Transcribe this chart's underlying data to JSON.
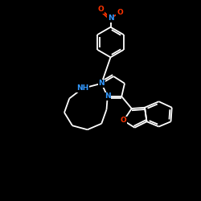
{
  "background_color": "#000000",
  "bond_color": "#ffffff",
  "N_color": "#3399ff",
  "O_color": "#ff3300",
  "figsize": [
    2.5,
    2.5
  ],
  "dpi": 100,
  "xlim": [
    0,
    10
  ],
  "ylim": [
    0,
    10
  ]
}
